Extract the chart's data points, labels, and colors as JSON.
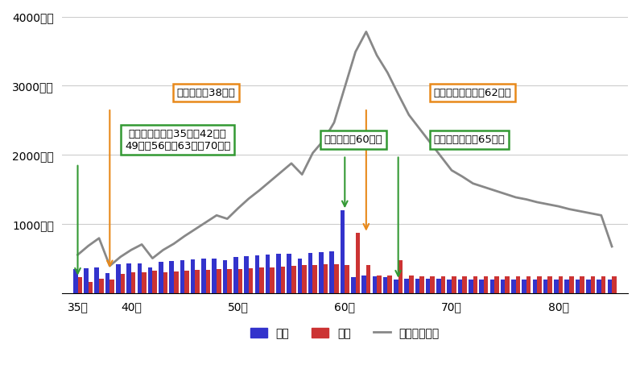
{
  "ages": [
    35,
    36,
    37,
    38,
    39,
    40,
    41,
    42,
    43,
    44,
    45,
    46,
    47,
    48,
    49,
    50,
    51,
    52,
    53,
    54,
    55,
    56,
    57,
    58,
    59,
    60,
    61,
    62,
    63,
    64,
    65,
    66,
    67,
    68,
    69,
    70,
    71,
    72,
    73,
    74,
    75,
    76,
    77,
    78,
    79,
    80,
    81,
    82,
    83,
    84,
    85
  ],
  "income": [
    350,
    370,
    380,
    300,
    420,
    430,
    440,
    380,
    460,
    470,
    480,
    490,
    500,
    510,
    480,
    530,
    540,
    550,
    560,
    570,
    580,
    510,
    590,
    600,
    610,
    1200,
    240,
    260,
    250,
    240,
    200,
    210,
    210,
    210,
    210,
    200,
    200,
    200,
    200,
    200,
    200,
    200,
    200,
    200,
    200,
    200,
    200,
    200,
    200,
    200,
    200
  ],
  "expense": [
    240,
    170,
    220,
    200,
    290,
    310,
    310,
    330,
    310,
    320,
    330,
    340,
    340,
    350,
    360,
    360,
    370,
    380,
    380,
    390,
    400,
    410,
    410,
    420,
    420,
    410,
    880,
    410,
    260,
    260,
    480,
    260,
    250,
    250,
    250,
    250,
    250,
    250,
    250,
    250,
    250,
    250,
    250,
    250,
    250,
    250,
    250,
    250,
    250,
    250,
    250
  ],
  "assets": [
    560,
    690,
    800,
    400,
    530,
    630,
    710,
    510,
    630,
    720,
    830,
    930,
    1030,
    1130,
    1080,
    1230,
    1370,
    1490,
    1620,
    1750,
    1880,
    1720,
    2030,
    2210,
    2470,
    2980,
    3490,
    3780,
    3440,
    3190,
    2880,
    2580,
    2380,
    2180,
    1980,
    1780,
    1690,
    1590,
    1540,
    1490,
    1440,
    1390,
    1360,
    1320,
    1290,
    1260,
    1220,
    1190,
    1160,
    1130,
    680
  ],
  "income_color": "#3333cc",
  "expense_color": "#cc3333",
  "assets_color": "#888888",
  "bar_width": 0.42,
  "ylim": [
    0,
    4000
  ],
  "yticks": [
    0,
    1000,
    2000,
    3000,
    4000
  ],
  "ytick_labels": [
    "",
    "1000万円",
    "2000万円",
    "3000万円",
    "4000万円"
  ],
  "xtick_ages": [
    35,
    40,
    50,
    60,
    70,
    80
  ],
  "xtick_labels": [
    "35歳",
    "40歳",
    "50歳",
    "60歳",
    "70歳",
    "80歳"
  ],
  "legend_items": [
    "収入",
    "支出",
    "金融資産残高"
  ]
}
